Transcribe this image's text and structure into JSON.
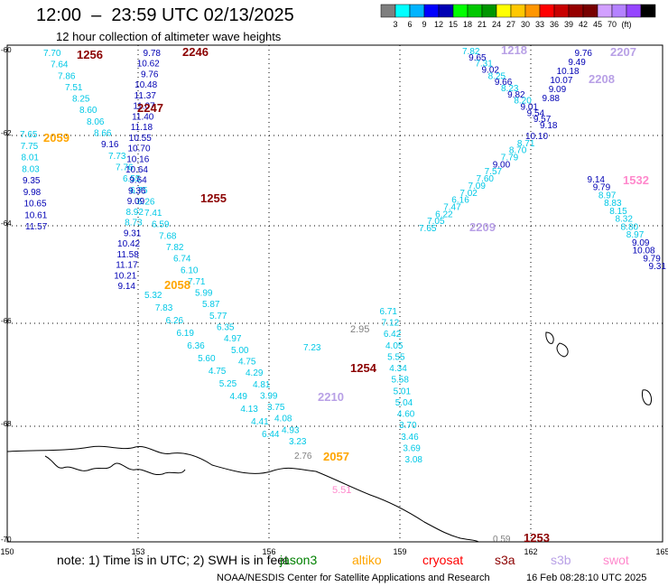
{
  "header": {
    "title": "12:00  –  23:59 UTC 02/13/2025",
    "subtitle": "12 hour collection of altimeter wave heights"
  },
  "colorbar": {
    "colors": [
      "#7f7f7f",
      "#00ffff",
      "#00b4ff",
      "#0000ff",
      "#0000b4",
      "#00ff00",
      "#00c800",
      "#009600",
      "#ffff00",
      "#ffc800",
      "#ff9600",
      "#ff0000",
      "#c80000",
      "#960000",
      "#780000",
      "#d2a0ff",
      "#b482ff",
      "#9646ff",
      "#000000"
    ],
    "labels": [
      "3",
      "6",
      "9",
      "12",
      "15",
      "18",
      "21",
      "24",
      "27",
      "30",
      "33",
      "36",
      "39",
      "42",
      "45",
      "70",
      "(ft)"
    ]
  },
  "axes": {
    "lon_labels": [
      "150",
      "153",
      "156",
      "159",
      "162",
      "165"
    ],
    "lat_labels": [
      "-60",
      "-62",
      "-64",
      "-66",
      "-68",
      "-70"
    ]
  },
  "passes": [
    {
      "id": "1256",
      "color": "#8b0000",
      "values": [
        "7.70",
        "7.64",
        "7.86",
        "7.51",
        "8.25",
        "8.60",
        "8.06",
        "8.66",
        "9.16",
        "7.73",
        "7.76",
        "6.55",
        "6.75",
        "6.26",
        "7.41",
        "6.59",
        "7.68",
        "7.82",
        "6.74",
        "6.10",
        "7.71",
        "5.99",
        "5.87",
        "5.77",
        "6.35",
        "4.97",
        "5.00",
        "4.75",
        "4.29",
        "4.81",
        "3.99",
        "3.75",
        "4.08",
        "4.93",
        "3.23"
      ]
    },
    {
      "id": "2246",
      "color": "#8b0000",
      "values": [
        "9.78",
        "10.62",
        "9.76",
        "10.48",
        "11.37",
        "11.07",
        "11.40",
        "11.18",
        "10.55",
        "10.70",
        "10.16",
        "10.64",
        "9.64",
        "9.36",
        "9.09",
        "8.92",
        "8.73",
        "9.31",
        "10.42",
        "11.58",
        "11.17",
        "10.21",
        "9.14"
      ]
    },
    {
      "id": "2247",
      "color": "#8b0000",
      "values": []
    },
    {
      "id": "1255",
      "color": "#8b0000",
      "values": []
    },
    {
      "id": "2059",
      "color": "#ffa500",
      "values": [
        "7.65",
        "7.75",
        "8.01",
        "8.03",
        "9.35",
        "9.98",
        "10.65",
        "10.61",
        "11.57"
      ]
    },
    {
      "id": "2058",
      "color": "#ffa500",
      "values": [
        "5.32",
        "7.83",
        "6.26",
        "6.19",
        "6.36",
        "5.60",
        "4.75",
        "5.25",
        "4.49",
        "4.13",
        "4.41",
        "6.44"
      ]
    },
    {
      "id": "1254",
      "color": "#8b0000",
      "values": [
        "6.71",
        "7.12",
        "6.42",
        "4.05",
        "5.55",
        "4.34",
        "5.58",
        "5.01",
        "5.04",
        "4.60",
        "3.70",
        "3.46",
        "3.69",
        "3.08"
      ]
    },
    {
      "id": "2210",
      "color": "#b8a0e6",
      "values": [
        "7.23"
      ]
    },
    {
      "id": "2057",
      "color": "#ffa500",
      "values": [
        "2.76"
      ]
    },
    {
      "id": "1253",
      "color": "#8b0000",
      "values": [
        "0.59"
      ]
    },
    {
      "id": "2209",
      "color": "#b8a0e6",
      "values": [
        "7.65",
        "7.05",
        "6.22",
        "7.47",
        "6.16",
        "7.02",
        "7.09",
        "7.60",
        "7.57",
        "9.00",
        "7.79",
        "8.70",
        "8.71",
        "10.10"
      ]
    },
    {
      "id": "1532",
      "color": "#ff88cc",
      "values": []
    },
    {
      "id": "1218",
      "color": "#b8a0e6",
      "values": [
        "7.82",
        "9.65",
        "7.31",
        "9.02",
        "8.25",
        "9.66",
        "8.23",
        "9.82",
        "8.20",
        "9.01",
        "9.54",
        "9.57",
        "9.18"
      ]
    },
    {
      "id": "2207",
      "color": "#b8a0e6",
      "values": [
        "9.76",
        "9.49",
        "10.18",
        "10.07",
        "9.09",
        "9.88"
      ]
    },
    {
      "id": "2208",
      "color": "#b8a0e6",
      "values": [
        "9.14",
        "9.79",
        "8.97",
        "8.83",
        "8.15",
        "8.32",
        "8.80",
        "8.97",
        "9.09",
        "10.08",
        "9.79",
        "9.31"
      ]
    },
    {
      "id": "5.51",
      "color": "#ff88cc",
      "values": []
    },
    {
      "id": "2.95",
      "color": "#7f7f7f",
      "values": []
    }
  ],
  "note": {
    "text": "note:  1) Time is in UTC; 2) SWH is in feet",
    "legend": [
      {
        "name": "jason3",
        "color": "#008000"
      },
      {
        "name": "altiko",
        "color": "#ffa500"
      },
      {
        "name": "cryosat",
        "color": "#ff0000"
      },
      {
        "name": "s3a",
        "color": "#8b0000"
      },
      {
        "name": "s3b",
        "color": "#b8a0e6"
      },
      {
        "name": "swot",
        "color": "#ff88cc"
      }
    ]
  },
  "footer": {
    "credit": "NOAA/NESDIS Center for Satellite Applications and Research",
    "timestamp": "16 Feb 08:28:10 UTC 2025"
  }
}
